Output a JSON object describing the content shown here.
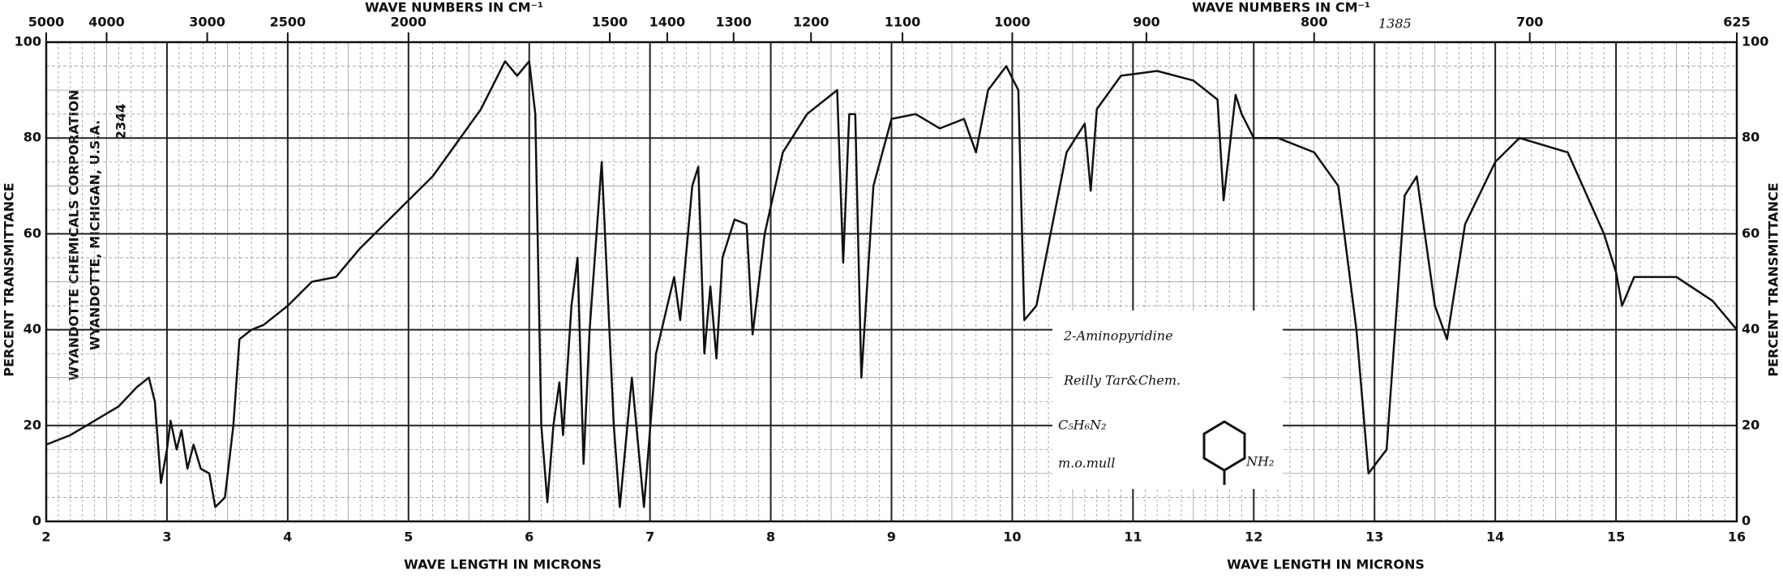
{
  "chart_data": {
    "type": "line",
    "x_label": "WAVE LENGTH IN MICRONS",
    "x2_label": "WAVE NUMBERS IN CM⁻¹",
    "y_label": "PERCENT TRANSMITTANCE",
    "x": [
      2.0,
      2.2,
      2.4,
      2.6,
      2.75,
      2.85,
      2.9,
      2.95,
      3.0,
      3.03,
      3.08,
      3.12,
      3.17,
      3.22,
      3.28,
      3.35,
      3.4,
      3.48,
      3.55,
      3.6,
      3.7,
      3.8,
      4.0,
      4.2,
      4.4,
      4.6,
      4.8,
      5.0,
      5.2,
      5.4,
      5.6,
      5.8,
      5.9,
      6.0,
      6.05,
      6.1,
      6.15,
      6.2,
      6.25,
      6.28,
      6.35,
      6.4,
      6.45,
      6.5,
      6.6,
      6.7,
      6.75,
      6.85,
      6.95,
      7.05,
      7.2,
      7.25,
      7.35,
      7.4,
      7.45,
      7.5,
      7.55,
      7.6,
      7.7,
      7.8,
      7.85,
      7.95,
      8.1,
      8.3,
      8.55,
      8.6,
      8.65,
      8.7,
      8.75,
      8.85,
      9.0,
      9.2,
      9.4,
      9.6,
      9.7,
      9.8,
      9.95,
      10.05,
      10.1,
      10.2,
      10.45,
      10.6,
      10.65,
      10.7,
      10.9,
      11.2,
      11.5,
      11.7,
      11.75,
      11.85,
      11.9,
      12.0,
      12.2,
      12.5,
      12.7,
      12.85,
      12.95,
      13.1,
      13.25,
      13.35,
      13.5,
      13.6,
      13.75,
      14.0,
      14.2,
      14.6,
      14.9,
      15.0,
      15.05,
      15.15,
      15.5,
      15.8,
      16.0
    ],
    "series": [
      {
        "color": "#111111",
        "values": [
          16,
          18,
          21,
          24,
          28,
          30,
          25,
          8,
          15,
          21,
          15,
          19,
          11,
          16,
          11,
          10,
          3,
          5,
          20,
          38,
          40,
          41,
          45,
          50,
          51,
          57,
          62,
          67,
          72,
          79,
          86,
          96,
          93,
          96,
          85,
          20,
          4,
          20,
          29,
          18,
          45,
          55,
          12,
          40,
          75,
          20,
          3,
          30,
          3,
          35,
          51,
          42,
          70,
          74,
          35,
          49,
          34,
          55,
          63,
          62,
          39,
          60,
          77,
          85,
          90,
          54,
          85,
          85,
          30,
          70,
          84,
          85,
          82,
          84,
          77,
          90,
          95,
          90,
          42,
          45,
          77,
          83,
          69,
          86,
          93,
          94,
          92,
          88,
          67,
          89,
          85,
          80,
          80,
          77,
          70,
          40,
          10,
          15,
          68,
          72,
          45,
          38,
          62,
          75,
          80,
          77,
          60,
          52,
          45,
          51,
          51,
          46,
          40
        ]
      }
    ],
    "xlim": [
      2,
      16
    ],
    "xticks": [
      2,
      3,
      4,
      5,
      6,
      7,
      8,
      9,
      10,
      11,
      12,
      13,
      14,
      15,
      16
    ],
    "x2ticks": [
      5000,
      4000,
      3000,
      2500,
      2000,
      1500,
      1400,
      1300,
      1200,
      1100,
      1000,
      900,
      800,
      700,
      625
    ],
    "ylim": [
      0,
      100
    ],
    "yticks": [
      0,
      20,
      40,
      60,
      80,
      100
    ],
    "grid": true,
    "annotations": {
      "spectrum_number": "1385",
      "sample": "2-Aminopyridine",
      "source": "Reilly Tar&Chem.",
      "formula": "C₅H₆N₂",
      "medium": "m.o.mull",
      "group": "NH₂",
      "publisher": "WYANDOTTE CHEMICALS CORPORATION",
      "address": "WYANDOTTE, MICHIGAN, U.S.A.",
      "catalog": "2344"
    }
  }
}
